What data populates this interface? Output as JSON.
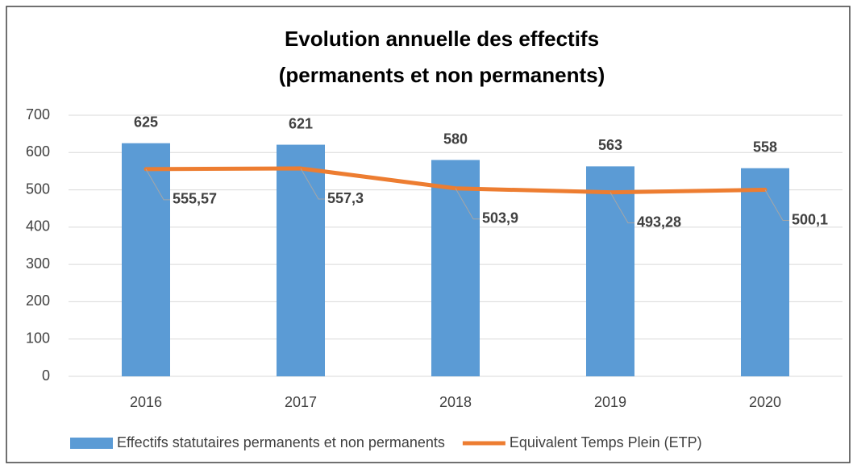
{
  "chart_data": {
    "type": "bar-line",
    "title": [
      "Evolution annuelle des effectifs",
      "(permanents et non permanents)"
    ],
    "categories": [
      "2016",
      "2017",
      "2018",
      "2019",
      "2020"
    ],
    "series": [
      {
        "name": "Effectifs statutaires permanents et non permanents",
        "type": "bar",
        "color": "#5b9bd5",
        "values": [
          625,
          621,
          580,
          563,
          558
        ]
      },
      {
        "name": "Equivalent Temps Plein (ETP)",
        "type": "line",
        "color": "#ed7d31",
        "values": [
          555.57,
          557.3,
          503.9,
          493.28,
          500.1
        ],
        "value_labels": [
          "555,57",
          "557,3",
          "503,9",
          "493,28",
          "500,1"
        ]
      }
    ],
    "ylim": [
      0,
      700
    ],
    "yticks": [
      0,
      100,
      200,
      300,
      400,
      500,
      600,
      700
    ],
    "grid": true,
    "legend": "bottom"
  }
}
